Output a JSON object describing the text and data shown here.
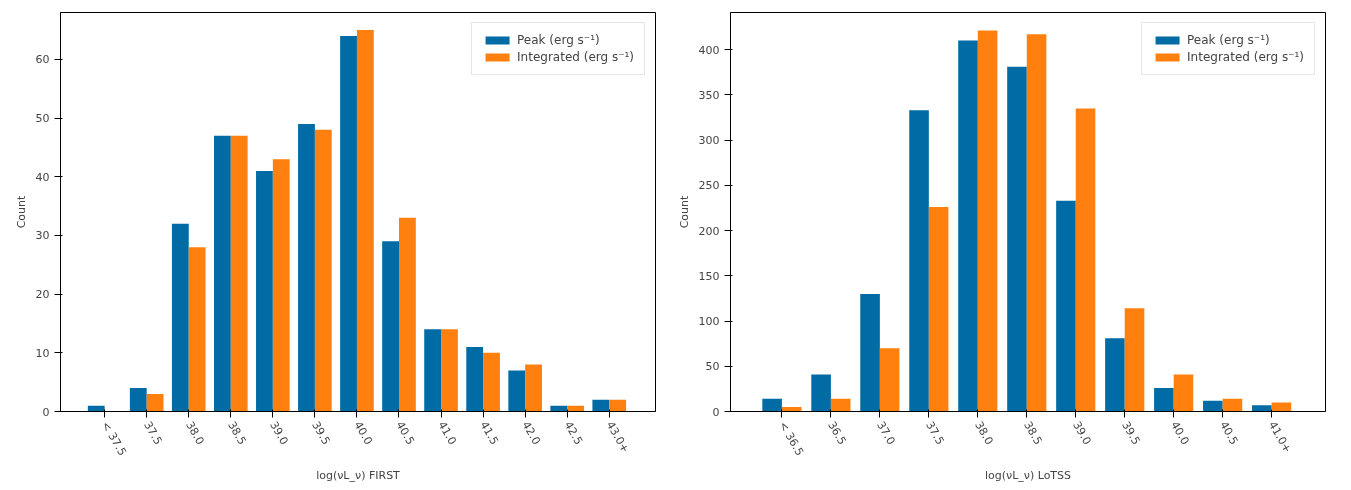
{
  "chart_data": [
    {
      "type": "bar",
      "categories": [
        "< 37.5",
        "37.5",
        "38.0",
        "38.5",
        "39.0",
        "39.5",
        "40.0",
        "40.5",
        "41.0",
        "41.5",
        "42.0",
        "42.5",
        "43.0+"
      ],
      "xlabel": "log(νL_ν) FIRST",
      "ylabel": "Count",
      "ylim": [
        0,
        68
      ],
      "yticks": [
        0,
        10,
        20,
        30,
        40,
        50,
        60
      ],
      "legend": "top right",
      "grid": false,
      "series": [
        {
          "name": "Peak (erg s⁻¹)",
          "color": "#006ba4",
          "values": [
            1,
            4,
            32,
            47,
            41,
            49,
            64,
            29,
            14,
            11,
            7,
            1,
            2
          ]
        },
        {
          "name": "Integrated (erg s⁻¹)",
          "color": "#ff800e",
          "values": [
            null,
            3,
            28,
            47,
            43,
            48,
            65,
            33,
            14,
            10,
            8,
            1,
            2
          ]
        }
      ]
    },
    {
      "type": "bar",
      "categories": [
        "< 36.5",
        "36.5",
        "37.0",
        "37.5",
        "38.0",
        "38.5",
        "39.0",
        "39.5",
        "40.0",
        "40.5",
        "41.0+"
      ],
      "xlabel": "log(νL_ν) LoTSS",
      "ylabel": "Count",
      "ylim": [
        0,
        441
      ],
      "yticks": [
        0,
        50,
        100,
        150,
        200,
        250,
        300,
        350,
        400
      ],
      "legend": "top right",
      "grid": false,
      "series": [
        {
          "name": "Peak (erg s⁻¹)",
          "color": "#006ba4",
          "values": [
            14,
            41,
            130,
            333,
            410,
            381,
            233,
            81,
            26,
            12,
            7
          ]
        },
        {
          "name": "Integrated (erg s⁻¹)",
          "color": "#ff800e",
          "values": [
            5,
            14,
            70,
            226,
            421,
            417,
            335,
            114,
            41,
            14,
            10
          ]
        }
      ]
    }
  ]
}
